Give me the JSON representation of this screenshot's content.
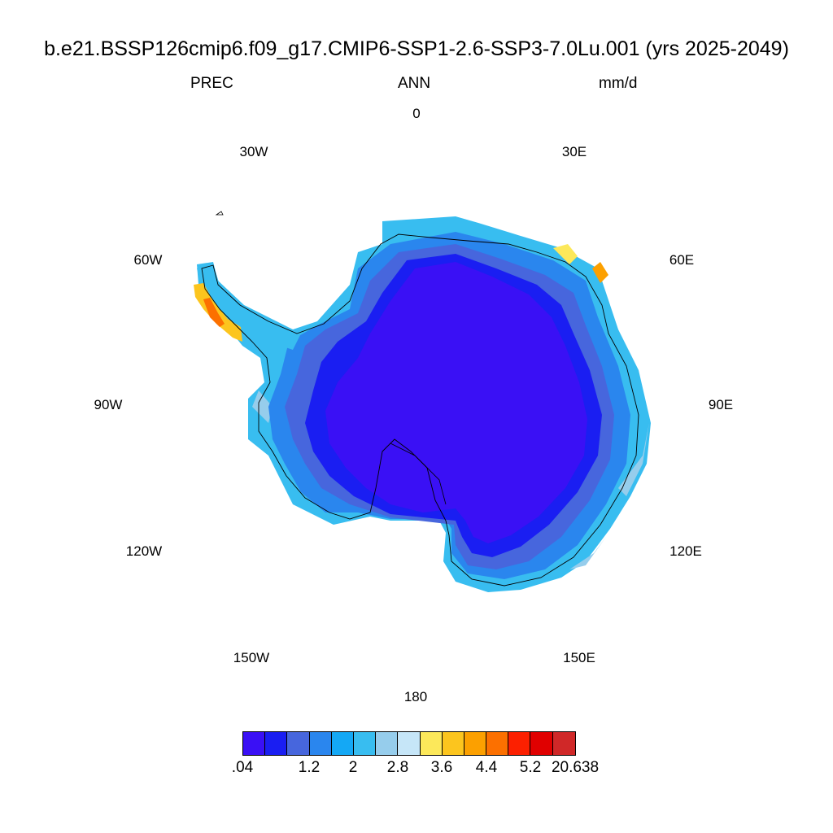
{
  "header": {
    "title": "b.e21.BSSP126cmip6.f09_g17.CMIP6-SSP1-2.6-SSP3-7.0Lu.001 (yrs 2025-2049)",
    "left": "PREC",
    "center": "ANN",
    "right": "mm/d"
  },
  "map": {
    "projection": "south polar stereographic",
    "region": "Antarctica",
    "longitude_labels": [
      "0",
      "30E",
      "60E",
      "90E",
      "120E",
      "150E",
      "180",
      "150W",
      "120W",
      "90W",
      "60W",
      "30W"
    ]
  },
  "colorbar": {
    "colors": [
      "#3a10f5",
      "#1a1ef2",
      "#4766dd",
      "#2a86ee",
      "#14a8f5",
      "#38bdf0",
      "#96cdec",
      "#c6e6f8",
      "#fce85a",
      "#fcc51e",
      "#fca000",
      "#fc7000",
      "#fc2000",
      "#e00000",
      "#d02828"
    ],
    "tick_labels": [
      ".04",
      "1.2",
      "2",
      "2.8",
      "3.6",
      "4.4",
      "5.2",
      "20.638"
    ]
  }
}
